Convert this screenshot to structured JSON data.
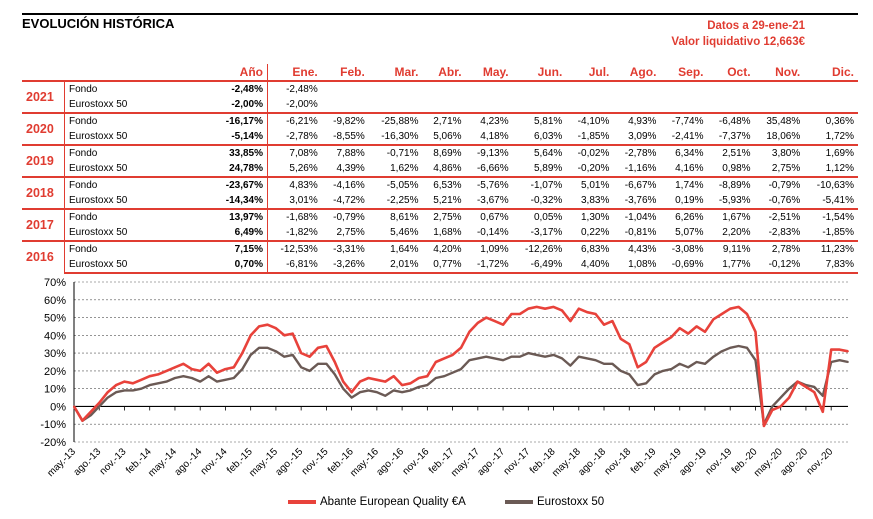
{
  "header": {
    "title": "EVOLUCIÓN HISTÓRICA",
    "date_label": "Datos a 29-ene-21",
    "nav_label": "Valor liquidativo 12,663€"
  },
  "table": {
    "columns": [
      "Año",
      "Ene.",
      "Feb.",
      "Mar.",
      "Abr.",
      "May.",
      "Jun.",
      "Jul.",
      "Ago.",
      "Sep.",
      "Oct.",
      "Nov.",
      "Dic."
    ],
    "years": [
      {
        "year": "2021",
        "rows": [
          {
            "name": "Fondo",
            "annual": "-2,48%",
            "months": [
              "-2,48%",
              "",
              "",
              "",
              "",
              "",
              "",
              "",
              "",
              "",
              "",
              ""
            ]
          },
          {
            "name": "Eurostoxx 50",
            "annual": "-2,00%",
            "months": [
              "-2,00%",
              "",
              "",
              "",
              "",
              "",
              "",
              "",
              "",
              "",
              "",
              ""
            ]
          }
        ]
      },
      {
        "year": "2020",
        "rows": [
          {
            "name": "Fondo",
            "annual": "-16,17%",
            "months": [
              "-6,21%",
              "-9,82%",
              "-25,88%",
              "2,71%",
              "4,23%",
              "5,81%",
              "-4,10%",
              "4,93%",
              "-7,74%",
              "-6,48%",
              "35,48%",
              "0,36%"
            ]
          },
          {
            "name": "Eurostoxx 50",
            "annual": "-5,14%",
            "months": [
              "-2,78%",
              "-8,55%",
              "-16,30%",
              "5,06%",
              "4,18%",
              "6,03%",
              "-1,85%",
              "3,09%",
              "-2,41%",
              "-7,37%",
              "18,06%",
              "1,72%"
            ]
          }
        ]
      },
      {
        "year": "2019",
        "rows": [
          {
            "name": "Fondo",
            "annual": "33,85%",
            "months": [
              "7,08%",
              "7,88%",
              "-0,71%",
              "8,69%",
              "-9,13%",
              "5,64%",
              "-0,02%",
              "-2,78%",
              "6,34%",
              "2,51%",
              "3,80%",
              "1,69%"
            ]
          },
          {
            "name": "Eurostoxx 50",
            "annual": "24,78%",
            "months": [
              "5,26%",
              "4,39%",
              "1,62%",
              "4,86%",
              "-6,66%",
              "5,89%",
              "-0,20%",
              "-1,16%",
              "4,16%",
              "0,98%",
              "2,75%",
              "1,12%"
            ]
          }
        ]
      },
      {
        "year": "2018",
        "rows": [
          {
            "name": "Fondo",
            "annual": "-23,67%",
            "months": [
              "4,83%",
              "-4,16%",
              "-5,05%",
              "6,53%",
              "-5,76%",
              "-1,07%",
              "5,01%",
              "-6,67%",
              "1,74%",
              "-8,89%",
              "-0,79%",
              "-10,63%"
            ]
          },
          {
            "name": "Eurostoxx 50",
            "annual": "-14,34%",
            "months": [
              "3,01%",
              "-4,72%",
              "-2,25%",
              "5,21%",
              "-3,67%",
              "-0,32%",
              "3,83%",
              "-3,76%",
              "0,19%",
              "-5,93%",
              "-0,76%",
              "-5,41%"
            ]
          }
        ]
      },
      {
        "year": "2017",
        "rows": [
          {
            "name": "Fondo",
            "annual": "13,97%",
            "months": [
              "-1,68%",
              "-0,79%",
              "8,61%",
              "2,75%",
              "0,67%",
              "0,05%",
              "1,30%",
              "-1,04%",
              "6,26%",
              "1,67%",
              "-2,51%",
              "-1,54%"
            ]
          },
          {
            "name": "Eurostoxx 50",
            "annual": "6,49%",
            "months": [
              "-1,82%",
              "2,75%",
              "5,46%",
              "1,68%",
              "-0,14%",
              "-3,17%",
              "0,22%",
              "-0,81%",
              "5,07%",
              "2,20%",
              "-2,83%",
              "-1,85%"
            ]
          }
        ]
      },
      {
        "year": "2016",
        "rows": [
          {
            "name": "Fondo",
            "annual": "7,15%",
            "months": [
              "-12,53%",
              "-3,31%",
              "1,64%",
              "4,20%",
              "1,09%",
              "-12,26%",
              "6,83%",
              "4,43%",
              "-3,08%",
              "9,11%",
              "2,78%",
              "11,23%"
            ]
          },
          {
            "name": "Eurostoxx 50",
            "annual": "0,70%",
            "months": [
              "-6,81%",
              "-3,26%",
              "2,01%",
              "0,77%",
              "-1,72%",
              "-6,49%",
              "4,40%",
              "1,08%",
              "-0,69%",
              "1,77%",
              "-0,12%",
              "7,83%"
            ]
          }
        ]
      }
    ]
  },
  "colors": {
    "accent": "#e03c31",
    "fund": "#e8423b",
    "index": "#6b5a55",
    "grid": "#555555"
  },
  "chart_data": {
    "type": "line",
    "title": "",
    "xlabel": "",
    "ylabel": "",
    "ylim": [
      -20,
      70
    ],
    "yticks": [
      -20,
      -10,
      0,
      10,
      20,
      30,
      40,
      50,
      60,
      70
    ],
    "ytick_labels": [
      "-20%",
      "-10%",
      "0%",
      "10%",
      "20%",
      "30%",
      "40%",
      "50%",
      "60%",
      "70%"
    ],
    "grid": true,
    "legend_position": "bottom",
    "x_tick_labels": [
      "may.-13",
      "ago.-13",
      "nov.-13",
      "feb.-14",
      "may.-14",
      "ago.-14",
      "nov.-14",
      "feb.-15",
      "may.-15",
      "ago.-15",
      "nov.-15",
      "feb.-16",
      "may.-16",
      "ago.-16",
      "nov.-16",
      "feb.-17",
      "may.-17",
      "ago.-17",
      "nov.-17",
      "feb.-18",
      "may.-18",
      "ago.-18",
      "nov.-18",
      "feb.-19",
      "may.-19",
      "ago.-19",
      "nov.-19",
      "feb.-20",
      "may.-20",
      "ago.-20",
      "nov.-20"
    ],
    "x": [
      "may.-13",
      "jun.-13",
      "jul.-13",
      "ago.-13",
      "sep.-13",
      "oct.-13",
      "nov.-13",
      "dic.-13",
      "ene.-14",
      "feb.-14",
      "mar.-14",
      "abr.-14",
      "may.-14",
      "jun.-14",
      "jul.-14",
      "ago.-14",
      "sep.-14",
      "oct.-14",
      "nov.-14",
      "dic.-14",
      "ene.-15",
      "feb.-15",
      "mar.-15",
      "abr.-15",
      "may.-15",
      "jun.-15",
      "jul.-15",
      "ago.-15",
      "sep.-15",
      "oct.-15",
      "nov.-15",
      "dic.-15",
      "ene.-16",
      "feb.-16",
      "mar.-16",
      "abr.-16",
      "may.-16",
      "jun.-16",
      "jul.-16",
      "ago.-16",
      "sep.-16",
      "oct.-16",
      "nov.-16",
      "dic.-16",
      "ene.-17",
      "feb.-17",
      "mar.-17",
      "abr.-17",
      "may.-17",
      "jun.-17",
      "jul.-17",
      "ago.-17",
      "sep.-17",
      "oct.-17",
      "nov.-17",
      "dic.-17",
      "ene.-18",
      "feb.-18",
      "mar.-18",
      "abr.-18",
      "may.-18",
      "jun.-18",
      "jul.-18",
      "ago.-18",
      "sep.-18",
      "oct.-18",
      "nov.-18",
      "dic.-18",
      "ene.-19",
      "feb.-19",
      "mar.-19",
      "abr.-19",
      "may.-19",
      "jun.-19",
      "jul.-19",
      "ago.-19",
      "sep.-19",
      "oct.-19",
      "nov.-19",
      "dic.-19",
      "ene.-20",
      "feb.-20",
      "mar.-20",
      "abr.-20",
      "may.-20",
      "jun.-20",
      "jul.-20",
      "ago.-20",
      "sep.-20",
      "oct.-20",
      "nov.-20",
      "dic.-20",
      "ene.-21"
    ],
    "series": [
      {
        "name": "Abante European Quality €A",
        "values": [
          0,
          -8,
          -3,
          2,
          8,
          12,
          14,
          13,
          15,
          17,
          18,
          20,
          22,
          24,
          21,
          20,
          24,
          19,
          21,
          22,
          30,
          40,
          45,
          46,
          44,
          40,
          41,
          30,
          28,
          33,
          34,
          25,
          14,
          8,
          14,
          16,
          15,
          14,
          17,
          12,
          13,
          16,
          17,
          25,
          27,
          29,
          33,
          42,
          47,
          50,
          48,
          46,
          52,
          52,
          55,
          56,
          55,
          56,
          54,
          48,
          55,
          53,
          52,
          46,
          48,
          38,
          35,
          22,
          25,
          33,
          36,
          39,
          44,
          41,
          45,
          42,
          49,
          52,
          55,
          56,
          52,
          42,
          -11,
          -2,
          0,
          5,
          14,
          11,
          8,
          -3,
          32,
          32,
          31
        ]
      },
      {
        "name": "Eurostoxx 50",
        "values": [
          0,
          -8,
          -5,
          0,
          5,
          8,
          9,
          9,
          10,
          12,
          13,
          14,
          16,
          17,
          16,
          14,
          17,
          14,
          15,
          16,
          21,
          29,
          33,
          33,
          31,
          28,
          29,
          22,
          20,
          24,
          24,
          18,
          10,
          5,
          8,
          9,
          8,
          6,
          9,
          8,
          9,
          11,
          12,
          16,
          17,
          19,
          21,
          26,
          27,
          28,
          27,
          26,
          28,
          28,
          30,
          29,
          28,
          29,
          27,
          23,
          28,
          27,
          26,
          24,
          24,
          20,
          18,
          12,
          13,
          18,
          20,
          21,
          24,
          22,
          25,
          24,
          28,
          31,
          33,
          34,
          33,
          26,
          -10,
          0,
          5,
          10,
          14,
          12,
          11,
          6,
          25,
          26,
          25
        ]
      }
    ]
  },
  "legend": {
    "fund_label": "Abante European Quality €A",
    "index_label": "Eurostoxx 50"
  }
}
